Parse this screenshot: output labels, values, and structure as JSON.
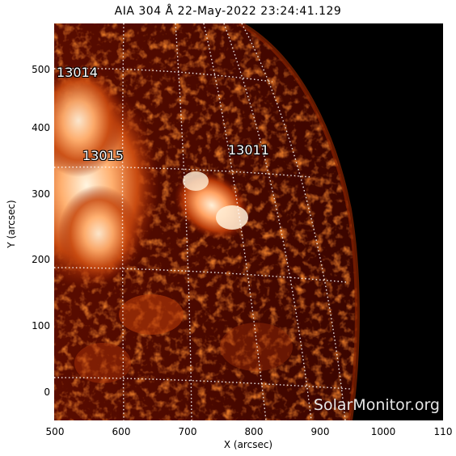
{
  "title": "AIA 304 Å 22-May-2022 23:24:41.129",
  "x_axis": {
    "label": "X (arcsec)",
    "ticks": [
      "500",
      "600",
      "700",
      "800",
      "900",
      "1000",
      "110"
    ]
  },
  "y_axis": {
    "label": "Y (arcsec)",
    "ticks": [
      "500",
      "400",
      "300",
      "200",
      "100",
      "0"
    ]
  },
  "regions": [
    {
      "id": "ar-13014",
      "label": "13014"
    },
    {
      "id": "ar-13015",
      "label": "13015"
    },
    {
      "id": "ar-13011",
      "label": "13011"
    }
  ],
  "watermark": "SolarMonitor.org",
  "colors": {
    "background": "#000000",
    "solar_dark": "#3a0500",
    "solar_mid": "#a02800",
    "solar_bright": "#ffd7a0",
    "grid": "#ffffff"
  }
}
